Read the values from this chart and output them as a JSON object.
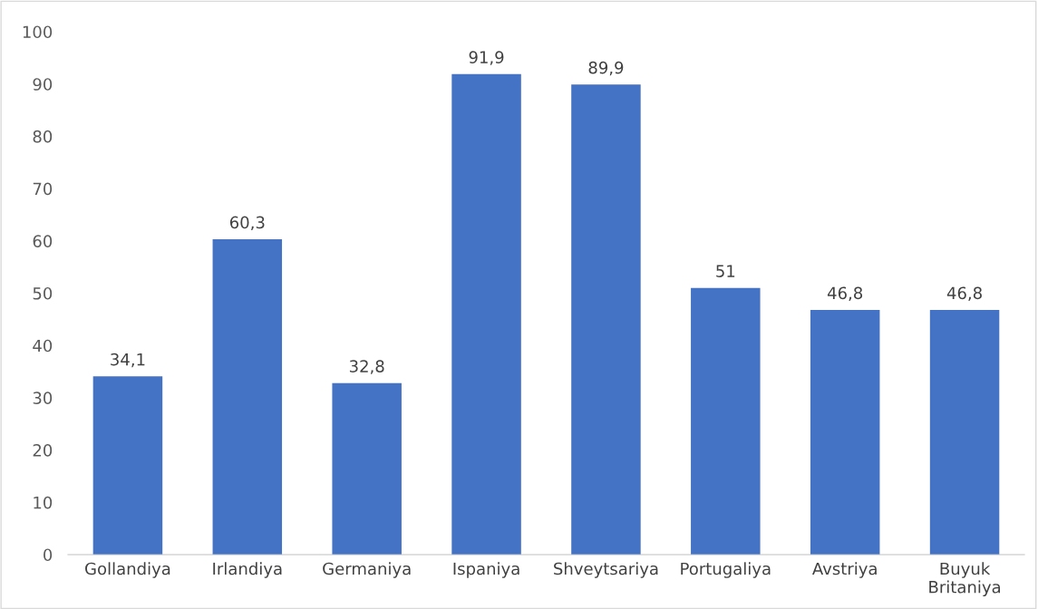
{
  "chart_data": {
    "type": "bar",
    "categories": [
      "Gollandiya",
      "Irlandiya",
      "Germaniya",
      "Ispaniya",
      "Shveytsariya",
      "Portugaliya",
      "Avstriya",
      "Buyuk Britaniya"
    ],
    "values": [
      34.1,
      60.3,
      32.8,
      91.9,
      89.9,
      51,
      46.8,
      46.8
    ],
    "value_labels": [
      "34,1",
      "60,3",
      "32,8",
      "91,9",
      "89,9",
      "51",
      "46,8",
      "46,8"
    ],
    "color": "#4472c4",
    "ylim": [
      0,
      100
    ],
    "yticks": [
      0,
      10,
      20,
      30,
      40,
      50,
      60,
      70,
      80,
      90,
      100
    ],
    "grid": false
  }
}
